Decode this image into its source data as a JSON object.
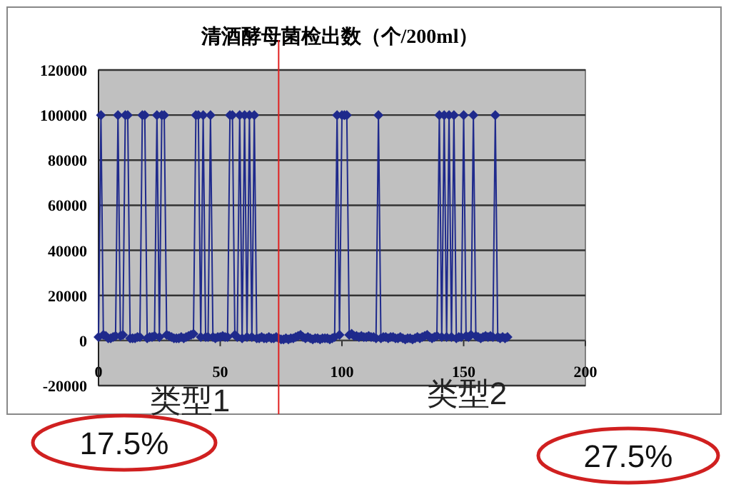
{
  "chart_data": {
    "type": "line",
    "title": "清酒酵母菌检出数（个/200ml）",
    "xlim": [
      0,
      200
    ],
    "xticks": [
      0,
      50,
      100,
      150,
      200
    ],
    "ylim": [
      -20000,
      120000
    ],
    "yticks": [
      -20000,
      0,
      20000,
      40000,
      60000,
      80000,
      100000,
      120000
    ],
    "grid": "y",
    "marker": "diamond",
    "line_style": "solid",
    "ref_lines": [
      {
        "axis": "x",
        "value": 74,
        "color": "#e02020"
      }
    ],
    "annotations": [
      "类型1",
      "类型2",
      "17.5%",
      "27.5%"
    ],
    "series": [
      {
        "color": "#1f2a8c",
        "x": [
          0,
          1,
          2,
          3,
          4,
          5,
          6,
          7,
          8,
          9,
          10,
          11,
          12,
          13,
          14,
          15,
          16,
          17,
          18,
          19,
          20,
          21,
          22,
          23,
          24,
          25,
          26,
          27,
          28,
          29,
          30,
          31,
          32,
          33,
          34,
          35,
          36,
          37,
          38,
          39,
          40,
          41,
          42,
          43,
          44,
          45,
          46,
          47,
          48,
          49,
          50,
          51,
          52,
          53,
          54,
          55,
          56,
          57,
          58,
          59,
          60,
          61,
          62,
          63,
          64,
          65,
          66,
          67,
          68,
          69,
          70,
          71,
          72,
          73,
          74,
          75,
          76,
          77,
          78,
          79,
          80,
          81,
          82,
          83,
          84,
          85,
          86,
          87,
          88,
          89,
          90,
          91,
          92,
          93,
          94,
          95,
          96,
          97,
          98,
          99,
          100,
          101,
          102,
          103,
          104,
          105,
          106,
          107,
          108,
          109,
          110,
          111,
          112,
          113,
          114,
          115,
          116,
          117,
          118,
          119,
          120,
          121,
          122,
          123,
          124,
          125,
          126,
          127,
          128,
          129,
          130,
          131,
          132,
          133,
          134,
          135,
          136,
          137,
          138,
          139,
          140,
          141,
          142,
          143,
          144,
          145,
          146,
          147,
          148,
          149,
          150,
          151,
          152,
          153,
          154,
          155,
          156,
          157,
          158,
          159,
          160,
          161,
          162,
          163,
          164,
          165,
          166,
          167,
          168
        ],
        "values": [
          1500,
          100000,
          2500,
          2000,
          1000,
          1000,
          1500,
          2000,
          100000,
          2000,
          2500,
          100000,
          100000,
          1000,
          1000,
          1000,
          1500,
          1500,
          100000,
          100000,
          1000,
          1500,
          1500,
          2000,
          100000,
          1500,
          100000,
          100000,
          2500,
          2000,
          1500,
          1000,
          1000,
          1000,
          1500,
          1000,
          1500,
          2000,
          2500,
          3000,
          100000,
          100000,
          1500,
          100000,
          1500,
          1500,
          100000,
          1500,
          1000,
          1500,
          1500,
          2000,
          1500,
          1500,
          100000,
          100000,
          2500,
          1500,
          100000,
          1000,
          100000,
          1500,
          100000,
          1500,
          100000,
          1000,
          1000,
          1500,
          1000,
          1000,
          1500,
          1000,
          1000,
          1500,
          1000,
          500,
          500,
          1000,
          500,
          1000,
          1000,
          1500,
          2000,
          2500,
          1500,
          1000,
          1500,
          1000,
          500,
          1000,
          1000,
          500,
          1000,
          1000,
          1000,
          500,
          1000,
          1500,
          100000,
          2500,
          100000,
          100000,
          100000,
          2500,
          3000,
          2000,
          2000,
          1500,
          2000,
          1500,
          1500,
          2000,
          1500,
          1500,
          1000,
          100000,
          1000,
          1500,
          1500,
          1000,
          1500,
          1500,
          1000,
          1000,
          1500,
          1000,
          500,
          1000,
          1000,
          500,
          1000,
          1500,
          1000,
          1500,
          2000,
          2500,
          1500,
          1000,
          1500,
          2000,
          100000,
          1500,
          100000,
          1500,
          100000,
          1500,
          100000,
          1000,
          1500,
          1500,
          100000,
          2000,
          1500,
          2500,
          100000,
          2000,
          1500,
          1000,
          1500,
          2000,
          1500,
          2000,
          1500,
          100000,
          1500,
          1000,
          1500,
          1000,
          1500
        ]
      }
    ]
  }
}
